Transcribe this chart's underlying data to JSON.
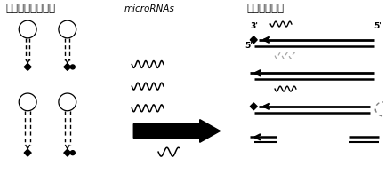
{
  "title_left": "不同荧光标记探针",
  "title_mid": "microRNAs",
  "title_right": "荧光极大增强",
  "bg_color": "#ffffff",
  "text_color": "#000000",
  "font_size_title": 8.5,
  "font_size_small": 6.5,
  "fig_width": 4.33,
  "fig_height": 2.14,
  "dpi": 100
}
